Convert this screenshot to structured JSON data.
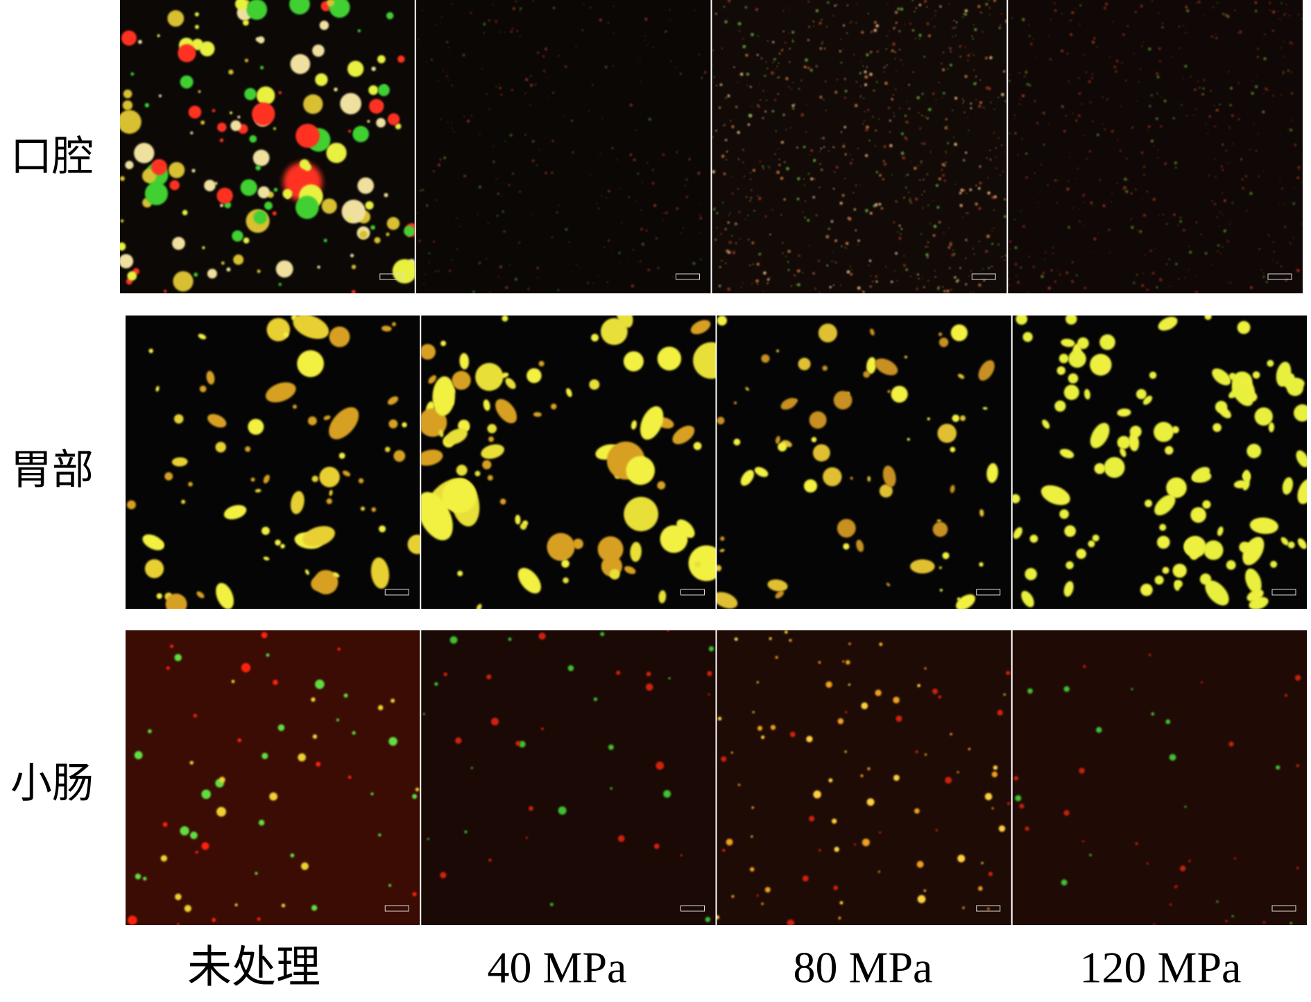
{
  "row_labels": [
    "口腔",
    "胃部",
    "小肠"
  ],
  "column_labels": [
    "未处理",
    "40 MPa",
    "80 MPa",
    "120 MPa"
  ]
}
